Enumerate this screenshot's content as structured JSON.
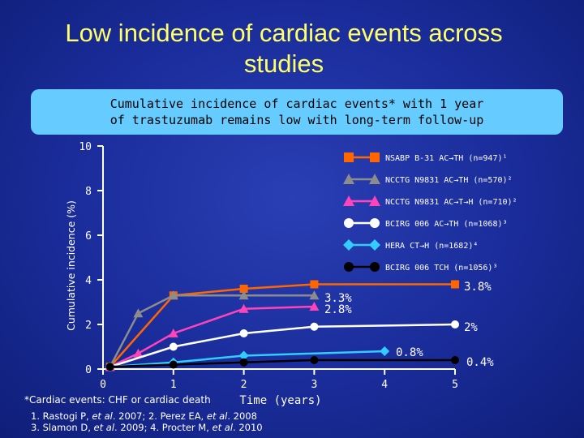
{
  "slide": {
    "title_line1": "Low incidence of cardiac events across",
    "title_line2": "studies",
    "banner_line1": "Cumulative incidence of cardiac events* with 1 year",
    "banner_line2": "of trastuzumab remains low with long-term follow-up",
    "footnote": "*Cardiac events: CHF or cardiac death",
    "references": [
      [
        "1. Rastogi P, ",
        "et al",
        ". 2007; 2. Perez EA, ",
        "et al",
        ". 2008"
      ],
      [
        "3. Slamon D, ",
        "et al",
        ". 2009; 4. Procter M, ",
        "et al",
        ". 2010"
      ]
    ]
  },
  "colors": {
    "axis": "#ffffff",
    "title": "#ffff66",
    "banner": "#66ccff"
  },
  "chart_data": {
    "type": "line",
    "xlabel": "Time (years)",
    "ylabel": "Cumulative incidence (%)",
    "xlim": [
      0,
      5
    ],
    "ylim": [
      0,
      10
    ],
    "xticks": [
      0,
      1,
      2,
      3,
      4,
      5
    ],
    "yticks": [
      0,
      2,
      4,
      6,
      8,
      10
    ],
    "grid": false,
    "legend_position": "top-right",
    "series": [
      {
        "name": "NSABP B-31 AC→TH (n=947)¹",
        "color": "#ff6600",
        "marker": "square",
        "x": [
          0.1,
          1.0,
          2.0,
          3.0,
          5.0
        ],
        "y": [
          0.1,
          3.3,
          3.6,
          3.8,
          3.8
        ]
      },
      {
        "name": "NCCTG N9831 AC→TH (n=570)²",
        "color": "#8c8c8c",
        "marker": "triangle",
        "x": [
          0.1,
          0.5,
          1.0,
          2.0,
          3.0
        ],
        "y": [
          0.1,
          2.5,
          3.3,
          3.3,
          3.3
        ]
      },
      {
        "name": "NCCTG N9831 AC→T→H (n=710)²",
        "color": "#ff44bb",
        "marker": "triangle",
        "x": [
          0.1,
          0.5,
          1.0,
          2.0,
          3.0
        ],
        "y": [
          0.1,
          0.7,
          1.6,
          2.7,
          2.8
        ]
      },
      {
        "name": "BCIRG 006 AC→TH (n=1068)³",
        "color": "#ffffff",
        "marker": "circle",
        "x": [
          0.1,
          1.0,
          2.0,
          3.0,
          5.0
        ],
        "y": [
          0.1,
          1.0,
          1.6,
          1.9,
          2.0
        ]
      },
      {
        "name": "HERA CT→H (n=1682)⁴",
        "color": "#33ccff",
        "marker": "diamond",
        "x": [
          0.1,
          1.0,
          2.0,
          4.0
        ],
        "y": [
          0.1,
          0.3,
          0.6,
          0.8
        ]
      },
      {
        "name": "BCIRG 006 TCH (n=1056)³",
        "color": "#000000",
        "marker": "circle",
        "x": [
          0.1,
          1.0,
          2.0,
          3.0,
          5.0
        ],
        "y": [
          0.1,
          0.2,
          0.3,
          0.4,
          0.4
        ]
      }
    ],
    "annotations": [
      {
        "text": "3.8%",
        "x": 5.0,
        "y": 3.8
      },
      {
        "text": "3.3%",
        "x": 3.0,
        "y": 3.3
      },
      {
        "text": "2.8%",
        "x": 3.0,
        "y": 2.8
      },
      {
        "text": "2%",
        "x": 5.0,
        "y": 2.0
      },
      {
        "text": "0.8%",
        "x": 4.0,
        "y": 0.8
      },
      {
        "text": "0.4%",
        "x": 5.0,
        "y": 0.4
      }
    ]
  }
}
